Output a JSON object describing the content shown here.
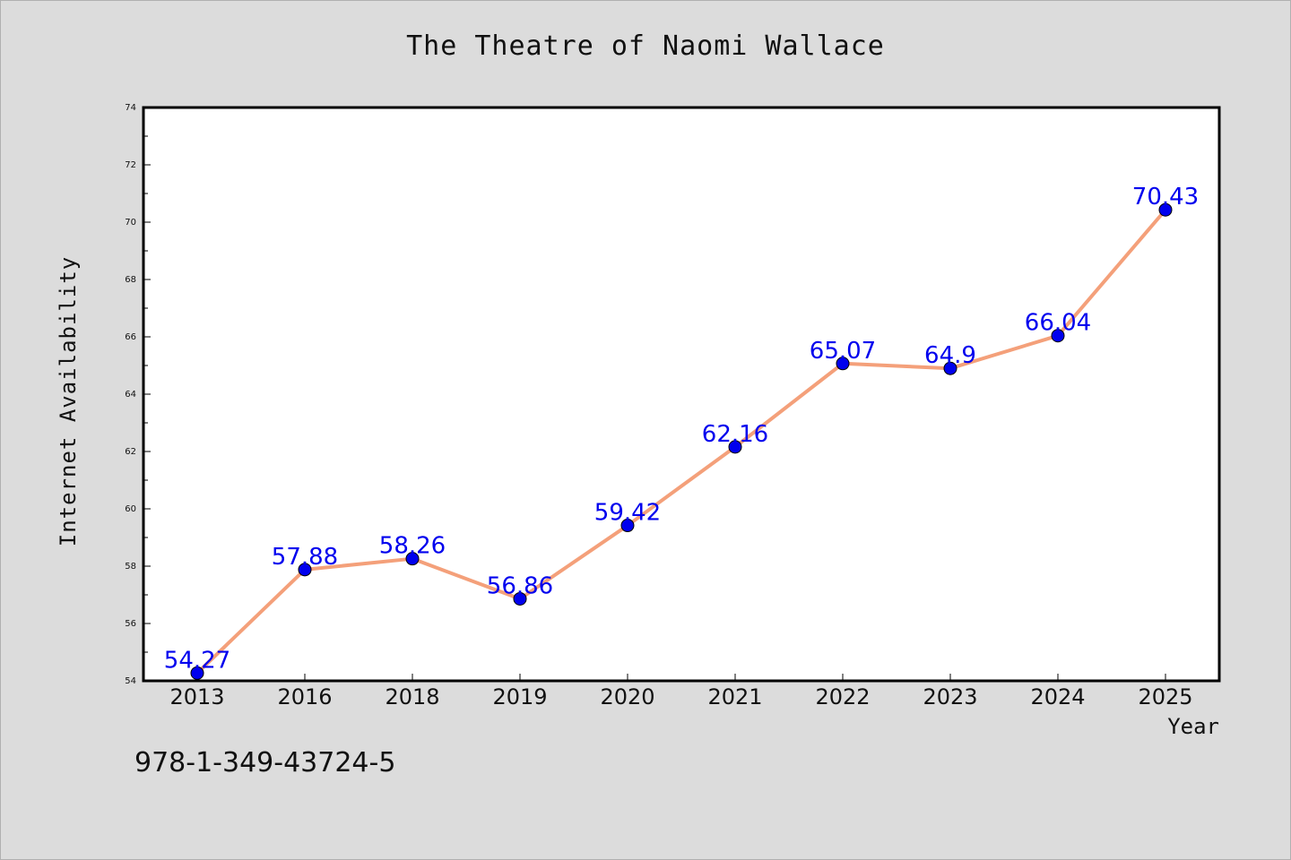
{
  "chart_data": {
    "type": "line",
    "title": "The Theatre of Naomi Wallace",
    "xlabel": "Year",
    "ylabel": "Internet Availability",
    "categories": [
      "2013",
      "2016",
      "2018",
      "2019",
      "2020",
      "2021",
      "2022",
      "2023",
      "2024",
      "2025"
    ],
    "series": [
      {
        "values": [
          54.27,
          57.88,
          58.26,
          56.86,
          59.42,
          62.16,
          65.07,
          64.9,
          66.04,
          70.43
        ],
        "line_color": "#f4a07a",
        "marker_color": "#0000ee"
      }
    ],
    "data_labels": [
      "54.27",
      "57.88",
      "58.26",
      "56.86",
      "59.42",
      "62.16",
      "65.07",
      "64.9",
      "66.04",
      "70.43"
    ],
    "ylim": [
      54,
      74
    ],
    "yticks": [
      "54",
      "56",
      "58",
      "60",
      "62",
      "64",
      "66",
      "68",
      "70",
      "72",
      "74"
    ],
    "grid": false,
    "label_color": "#0000ee"
  },
  "footer_text": "978-1-349-43724-5"
}
